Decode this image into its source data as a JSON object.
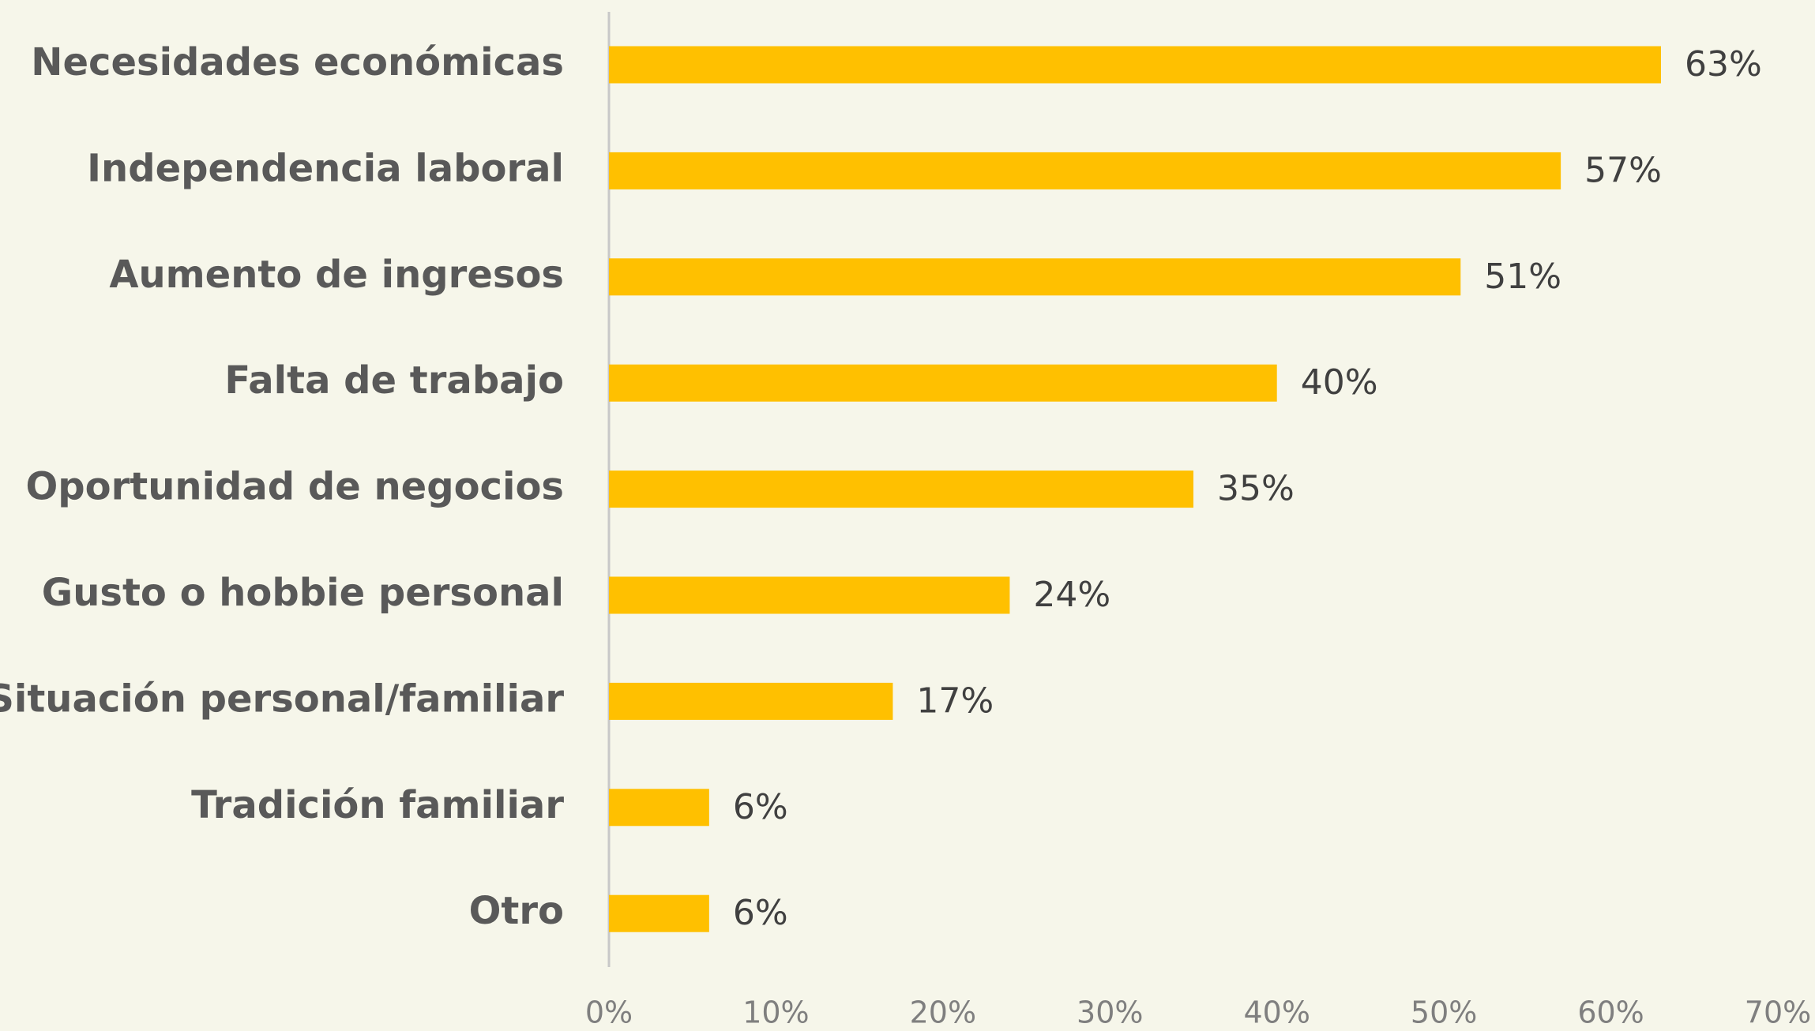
{
  "chart_data": {
    "type": "bar",
    "orientation": "horizontal",
    "categories": [
      "Necesidades económicas",
      "Independencia laboral",
      "Aumento de ingresos",
      "Falta de trabajo ",
      "Oportunidad de negocios",
      "Gusto o hobbie personal",
      "Situación personal/familiar",
      "Tradición familiar",
      "Otro"
    ],
    "values": [
      63,
      57,
      51,
      40,
      35,
      24,
      17,
      6,
      6
    ],
    "value_labels": [
      "63%",
      "57%",
      "51%",
      "40%",
      "35%",
      "24%",
      "17%",
      "6%",
      "6%"
    ],
    "color": "#ffc000",
    "xlim": [
      0,
      70
    ],
    "xticks": [
      {
        "value": 0,
        "label": "0%"
      },
      {
        "value": 10,
        "label": "10%"
      },
      {
        "value": 20,
        "label": "20%"
      },
      {
        "value": 30,
        "label": "30%"
      },
      {
        "value": 40,
        "label": "40%"
      },
      {
        "value": 50,
        "label": "50%"
      },
      {
        "value": 60,
        "label": "60%"
      },
      {
        "value": 70,
        "label": "70%"
      }
    ],
    "grid": false
  }
}
